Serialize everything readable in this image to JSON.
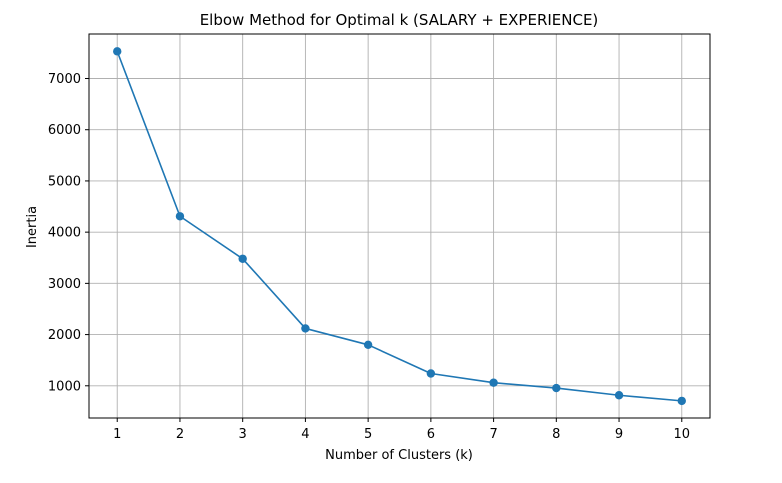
{
  "chart_data": {
    "type": "line",
    "title": "Elbow Method for Optimal k (SALARY + EXPERIENCE)",
    "xlabel": "Number of Clusters (k)",
    "ylabel": "Inertia",
    "x": [
      1,
      2,
      3,
      4,
      5,
      6,
      7,
      8,
      9,
      10
    ],
    "series": [
      {
        "values": [
          7530,
          4310,
          3480,
          2120,
          1800,
          1240,
          1060,
          955,
          815,
          705
        ],
        "color": "#1f77b4",
        "marker": "circle"
      }
    ],
    "xlim": [
      0.55,
      10.45
    ],
    "ylim": [
      371,
      7869
    ],
    "xticks": [
      1,
      2,
      3,
      4,
      5,
      6,
      7,
      8,
      9,
      10
    ],
    "yticks": [
      1000,
      2000,
      3000,
      4000,
      5000,
      6000,
      7000
    ],
    "grid": true,
    "grid_color": "#b0b0b0"
  }
}
